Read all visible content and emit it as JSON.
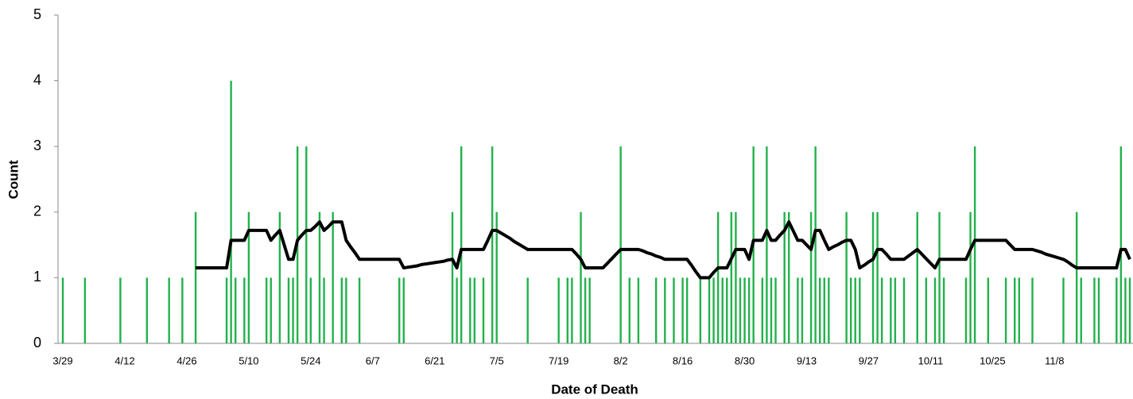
{
  "chart_data": {
    "type": "bar",
    "x_label": "Date of Death",
    "y_label": "Count",
    "categories": [
      "3/29",
      null,
      null,
      null,
      null,
      null,
      null,
      null,
      null,
      null,
      null,
      null,
      null,
      null,
      "4/12",
      null,
      null,
      null,
      null,
      null,
      null,
      null,
      null,
      null,
      null,
      null,
      null,
      null,
      "4/26",
      null,
      null,
      null,
      null,
      null,
      null,
      null,
      null,
      null,
      null,
      null,
      null,
      null,
      "5/10",
      null,
      null,
      null,
      null,
      null,
      null,
      null,
      null,
      null,
      null,
      null,
      null,
      null,
      "5/24",
      null,
      null,
      null,
      null,
      null,
      null,
      null,
      null,
      null,
      null,
      null,
      null,
      null,
      "6/7",
      null,
      null,
      null,
      null,
      null,
      null,
      null,
      null,
      null,
      null,
      null,
      null,
      null,
      "6/21",
      null,
      null,
      null,
      null,
      null,
      null,
      null,
      null,
      null,
      null,
      null,
      null,
      null,
      "7/5",
      null,
      null,
      null,
      null,
      null,
      null,
      null,
      null,
      null,
      null,
      null,
      null,
      null,
      "7/19",
      null,
      null,
      null,
      null,
      null,
      null,
      null,
      null,
      null,
      null,
      null,
      null,
      null,
      "8/2",
      null,
      null,
      null,
      null,
      null,
      null,
      null,
      null,
      null,
      null,
      null,
      null,
      null,
      "8/16",
      null,
      null,
      null,
      null,
      null,
      null,
      null,
      null,
      null,
      null,
      null,
      null,
      null,
      "8/30",
      null,
      null,
      null,
      null,
      null,
      null,
      null,
      null,
      null,
      null,
      null,
      null,
      null,
      "9/13",
      null,
      null,
      null,
      null,
      null,
      null,
      null,
      null,
      null,
      null,
      null,
      null,
      null,
      "9/27",
      null,
      null,
      null,
      null,
      null,
      null,
      null,
      null,
      null,
      null,
      null,
      null,
      null,
      "10/11",
      null,
      null,
      null,
      null,
      null,
      null,
      null,
      null,
      null,
      null,
      null,
      null,
      null,
      "10/25",
      null,
      null,
      null,
      null,
      null,
      null,
      null,
      null,
      null,
      null,
      null,
      null,
      null,
      "11/8",
      null,
      null,
      null,
      null,
      null,
      null,
      null,
      null,
      null,
      null,
      null,
      null,
      null,
      null,
      null,
      null,
      null
    ],
    "series": [
      {
        "type": "bar",
        "color": "#22b14c",
        "values": [
          1,
          0,
          0,
          0,
          0,
          1,
          0,
          0,
          0,
          0,
          0,
          0,
          0,
          1,
          0,
          0,
          0,
          0,
          0,
          1,
          0,
          0,
          0,
          0,
          1,
          0,
          0,
          1,
          0,
          0,
          2,
          0,
          0,
          0,
          0,
          0,
          0,
          1,
          4,
          1,
          0,
          1,
          2,
          0,
          0,
          0,
          1,
          1,
          0,
          2,
          0,
          1,
          1,
          3,
          0,
          3,
          1,
          0,
          2,
          1,
          0,
          2,
          0,
          1,
          1,
          0,
          0,
          1,
          0,
          0,
          0,
          0,
          0,
          0,
          0,
          0,
          1,
          1,
          0,
          0,
          0,
          0,
          0,
          0,
          0,
          0,
          0,
          0,
          2,
          1,
          3,
          0,
          1,
          1,
          0,
          1,
          0,
          3,
          2,
          0,
          0,
          0,
          0,
          0,
          0,
          1,
          0,
          0,
          0,
          0,
          0,
          0,
          1,
          0,
          1,
          1,
          0,
          2,
          1,
          1,
          0,
          0,
          0,
          0,
          0,
          0,
          3,
          0,
          1,
          0,
          1,
          0,
          0,
          0,
          1,
          0,
          1,
          0,
          1,
          0,
          1,
          1,
          0,
          0,
          1,
          0,
          1,
          1,
          2,
          1,
          1,
          2,
          2,
          1,
          1,
          1,
          3,
          0,
          1,
          3,
          1,
          1,
          0,
          2,
          2,
          0,
          1,
          1,
          0,
          2,
          3,
          1,
          1,
          1,
          0,
          0,
          0,
          2,
          1,
          1,
          1,
          0,
          0,
          2,
          2,
          1,
          0,
          1,
          1,
          0,
          1,
          0,
          0,
          2,
          0,
          1,
          0,
          1,
          2,
          1,
          0,
          0,
          0,
          0,
          1,
          2,
          3,
          0,
          0,
          1,
          0,
          0,
          0,
          1,
          0,
          1,
          1,
          0,
          0,
          1,
          0,
          0,
          0,
          0,
          0,
          0,
          1,
          0,
          0,
          2,
          1,
          0,
          0,
          1,
          1,
          0,
          0,
          0,
          1,
          3,
          1,
          1
        ]
      },
      {
        "type": "line",
        "color": "#000000",
        "values": [
          null,
          null,
          null,
          null,
          null,
          null,
          null,
          null,
          null,
          null,
          null,
          null,
          null,
          null,
          null,
          null,
          null,
          null,
          null,
          null,
          null,
          null,
          null,
          null,
          null,
          null,
          null,
          null,
          null,
          null,
          1.15,
          1.15,
          1.15,
          1.15,
          1.15,
          1.15,
          1.15,
          1.15,
          1.57,
          1.57,
          1.57,
          1.57,
          1.72,
          1.72,
          1.72,
          1.72,
          1.72,
          1.57,
          1.65,
          1.72,
          1.5,
          1.28,
          1.28,
          1.57,
          1.65,
          1.72,
          1.72,
          1.78,
          1.85,
          1.72,
          1.78,
          1.85,
          1.85,
          1.85,
          1.57,
          1.47,
          1.38,
          1.28,
          1.28,
          1.28,
          1.28,
          1.28,
          1.28,
          1.28,
          1.28,
          1.28,
          1.28,
          1.15,
          1.16,
          1.17,
          1.18,
          1.2,
          1.21,
          1.22,
          1.23,
          1.24,
          1.25,
          1.27,
          1.28,
          1.15,
          1.43,
          1.43,
          1.43,
          1.43,
          1.43,
          1.43,
          1.57,
          1.72,
          1.72,
          1.68,
          1.64,
          1.6,
          1.55,
          1.51,
          1.47,
          1.43,
          1.43,
          1.43,
          1.43,
          1.43,
          1.43,
          1.43,
          1.43,
          1.43,
          1.43,
          1.43,
          1.36,
          1.28,
          1.15,
          1.15,
          1.15,
          1.15,
          1.15,
          1.22,
          1.29,
          1.36,
          1.43,
          1.43,
          1.43,
          1.43,
          1.43,
          1.41,
          1.38,
          1.36,
          1.33,
          1.31,
          1.28,
          1.28,
          1.28,
          1.28,
          1.28,
          1.28,
          1.19,
          1.09,
          1.0,
          1.0,
          1.0,
          1.08,
          1.15,
          1.15,
          1.15,
          1.29,
          1.43,
          1.43,
          1.43,
          1.28,
          1.57,
          1.57,
          1.57,
          1.72,
          1.57,
          1.57,
          1.65,
          1.72,
          1.85,
          1.71,
          1.57,
          1.57,
          1.5,
          1.43,
          1.72,
          1.72,
          1.57,
          1.43,
          1.47,
          1.5,
          1.54,
          1.57,
          1.57,
          1.43,
          1.15,
          1.19,
          1.24,
          1.28,
          1.43,
          1.43,
          1.36,
          1.28,
          1.28,
          1.28,
          1.28,
          1.33,
          1.38,
          1.43,
          1.36,
          1.29,
          1.22,
          1.15,
          1.28,
          1.28,
          1.28,
          1.28,
          1.28,
          1.28,
          1.28,
          1.43,
          1.57,
          1.57,
          1.57,
          1.57,
          1.57,
          1.57,
          1.57,
          1.57,
          1.5,
          1.43,
          1.43,
          1.43,
          1.43,
          1.43,
          1.41,
          1.39,
          1.36,
          1.34,
          1.32,
          1.3,
          1.28,
          1.24,
          1.19,
          1.15,
          1.15,
          1.15,
          1.15,
          1.15,
          1.15,
          1.15,
          1.15,
          1.15,
          1.15,
          1.43,
          1.43,
          1.28
        ]
      }
    ],
    "ylim": [
      0,
      5
    ],
    "yticks": [
      0,
      1,
      2,
      3,
      4,
      5
    ],
    "grid": false
  }
}
